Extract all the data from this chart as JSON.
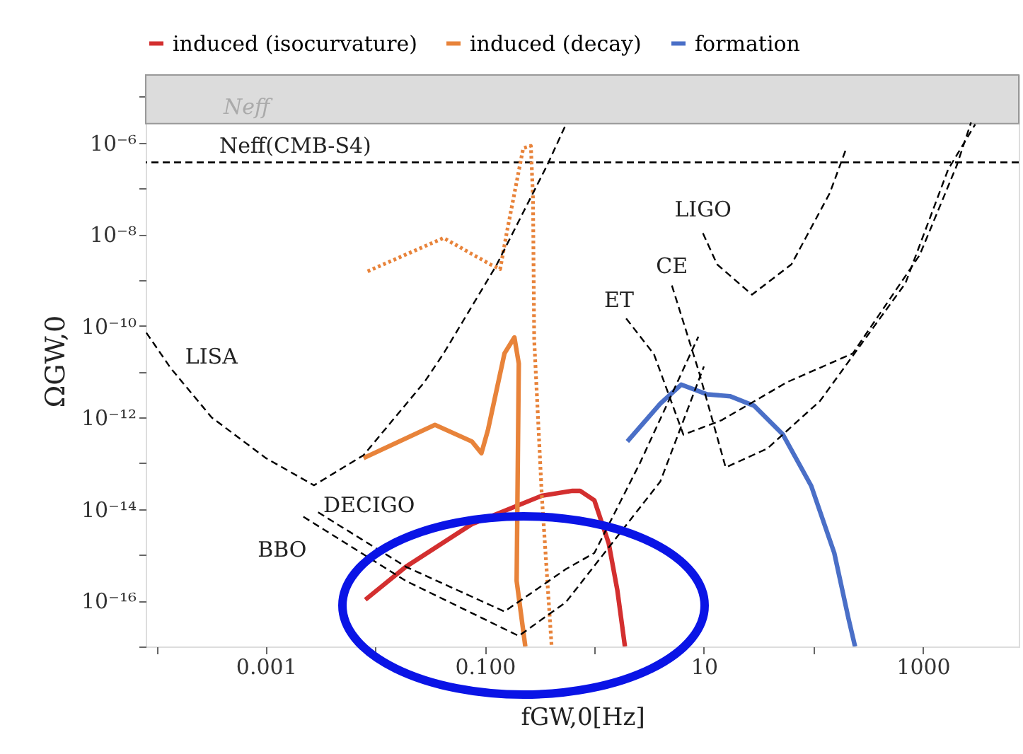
{
  "chart_data": {
    "type": "line",
    "xlabel": "fGW,0[Hz]",
    "ylabel": "ΩGW,0",
    "log": "xy",
    "grid": false,
    "legend": "top",
    "xlim": [
      8e-05,
      7500.0
    ],
    "ylim": [
      1e-17,
      3e-05
    ],
    "xticks": [
      {
        "value": 0.0001,
        "label": null
      },
      0.001,
      {
        "value": 0.01,
        "label": null
      },
      {
        "value": 0.1,
        "label": "0.100"
      },
      {
        "value": 1,
        "label": null
      },
      10,
      {
        "value": 100,
        "label": null
      },
      1000
    ],
    "yticks": [
      {
        "value": 1e-17,
        "label": null
      },
      {
        "value": 1e-16,
        "label": "10⁻¹⁶"
      },
      {
        "value": 1e-15,
        "label": null
      },
      {
        "value": 1e-14,
        "label": "10⁻¹⁴"
      },
      {
        "value": 1e-13,
        "label": null
      },
      {
        "value": 1e-12,
        "label": "10⁻¹²"
      },
      {
        "value": 1e-11,
        "label": null
      },
      {
        "value": 1e-10,
        "label": "10⁻¹⁰"
      },
      {
        "value": 1e-09,
        "label": null
      },
      {
        "value": 1e-08,
        "label": "10⁻⁸"
      },
      {
        "value": 1e-07,
        "label": null
      },
      {
        "value": 1e-06,
        "label": "10⁻⁶"
      },
      {
        "value": 1e-05,
        "label": null
      }
    ],
    "bands": [
      {
        "axis": "y",
        "from": 2.6e-06,
        "to": 3e-05,
        "label": "Neff",
        "color": "#dcdcdc"
      }
    ],
    "ref_lines": [
      {
        "axis": "y",
        "value": 3.7e-07,
        "label": "Neff(CMB-S4)",
        "color": "#000000",
        "line_style": "dashed"
      }
    ],
    "series": [
      {
        "name": "induced (isocurvature)",
        "color": "#d32f2f",
        "line_style": "solid",
        "x": [
          0.0081,
          0.019,
          0.076,
          0.33,
          0.63,
          0.74,
          1.0,
          1.35,
          1.62,
          1.9
        ],
        "values": [
          1.05e-16,
          5.5e-16,
          4.7e-15,
          1.95e-14,
          2.5e-14,
          2.5e-14,
          1.55e-14,
          1.8e-15,
          1.7e-16,
          1e-17
        ]
      },
      {
        "name": "induced (decay)",
        "color": "#e8833a",
        "line_style": "solid",
        "x": [
          0.0078,
          0.035,
          0.076,
          0.093,
          0.107,
          0.151,
          0.186,
          0.204,
          0.195,
          0.234
        ],
        "values": [
          1.3e-13,
          6.9e-13,
          3e-13,
          1.66e-13,
          5.5e-13,
          2.5e-11,
          5.6e-11,
          1.5e-11,
          2.7e-16,
          1e-17
        ]
      },
      {
        "color": "#e8833a",
        "line_style": "dotted",
        "x": [
          0.0085,
          0.042,
          0.112,
          0.138,
          0.158,
          0.224,
          0.263,
          0.275,
          0.282,
          0.331,
          0.407
        ],
        "values": [
          1.55e-09,
          8.3e-09,
          2.2e-09,
          1.74e-09,
          1.05e-08,
          7.6e-07,
          8.5e-07,
          6.2e-08,
          5e-11,
          1.95e-14,
          1e-17
        ]
      },
      {
        "name": "formation",
        "color": "#4a6fc7",
        "line_style": "solid",
        "x": [
          2.0,
          4.0,
          6.2,
          10.7,
          17.4,
          28.8,
          52.5,
          95.5,
          155,
          209,
          240
        ],
        "values": [
          3e-13,
          2e-12,
          5.2e-12,
          3.2e-12,
          2.9e-12,
          1.8e-12,
          4.3e-13,
          3.2e-14,
          1.1e-15,
          4.1e-17,
          1e-17
        ]
      },
      {
        "name": "LISA",
        "color": "#000000",
        "line_style": "dashed",
        "x": [
          8.1e-05,
          0.000135,
          0.00032,
          0.001,
          0.00275,
          0.0078,
          0.028,
          0.042,
          0.126,
          0.37,
          0.55
        ],
        "values": [
          7.1e-11,
          1.2e-11,
          1e-12,
          1.3e-13,
          3.3e-14,
          1.5e-13,
          5.9e-12,
          2.5e-11,
          2e-09,
          3.2e-07,
          2.5e-06
        ]
      },
      {
        "name": "DECIGO",
        "color": "#000000",
        "line_style": "dashed",
        "x": [
          0.003,
          0.019,
          0.151,
          0.55,
          1.0,
          2.6,
          8.9
        ],
        "values": [
          8.5e-15,
          5.5e-16,
          5.8e-17,
          4.9e-16,
          1.1e-15,
          1e-13,
          5.8e-11
        ]
      },
      {
        "name": "BBO",
        "color": "#000000",
        "line_style": "dashed",
        "x": [
          0.0022,
          0.019,
          0.204,
          0.55,
          4.0,
          10.0
        ],
        "values": [
          6.8e-15,
          2.7e-16,
          1.7e-17,
          9.3e-17,
          4e-14,
          1.3e-11
        ]
      },
      {
        "name": "ET",
        "color": "#000000",
        "line_style": "dashed",
        "x": [
          1.95,
          3.5,
          6.5,
          14.5,
          57.5,
          229,
          933,
          2040,
          2750
        ],
        "values": [
          1.45e-10,
          2.4e-11,
          4.2e-13,
          8.7e-13,
          5.9e-12,
          2.5e-11,
          3.5e-09,
          3.2e-07,
          2.75e-06
        ]
      },
      {
        "name": "CE",
        "color": "#000000",
        "line_style": "dashed",
        "x": [
          5.1,
          9.0,
          15.8,
          38,
          115,
          692,
          1700,
          3000
        ],
        "values": [
          7.6e-10,
          1e-11,
          8.1e-14,
          2.1e-13,
          2.3e-12,
          8.5e-10,
          2.6e-07,
          2.5e-06
        ]
      },
      {
        "name": "LIGO",
        "color": "#000000",
        "line_style": "dashed",
        "x": [
          9.8,
          13.2,
          27.5,
          63,
          141,
          200
        ],
        "values": [
          1.05e-08,
          2.2e-09,
          4.8e-10,
          2.2e-09,
          7.9e-08,
          7.6e-07
        ]
      }
    ]
  }
}
